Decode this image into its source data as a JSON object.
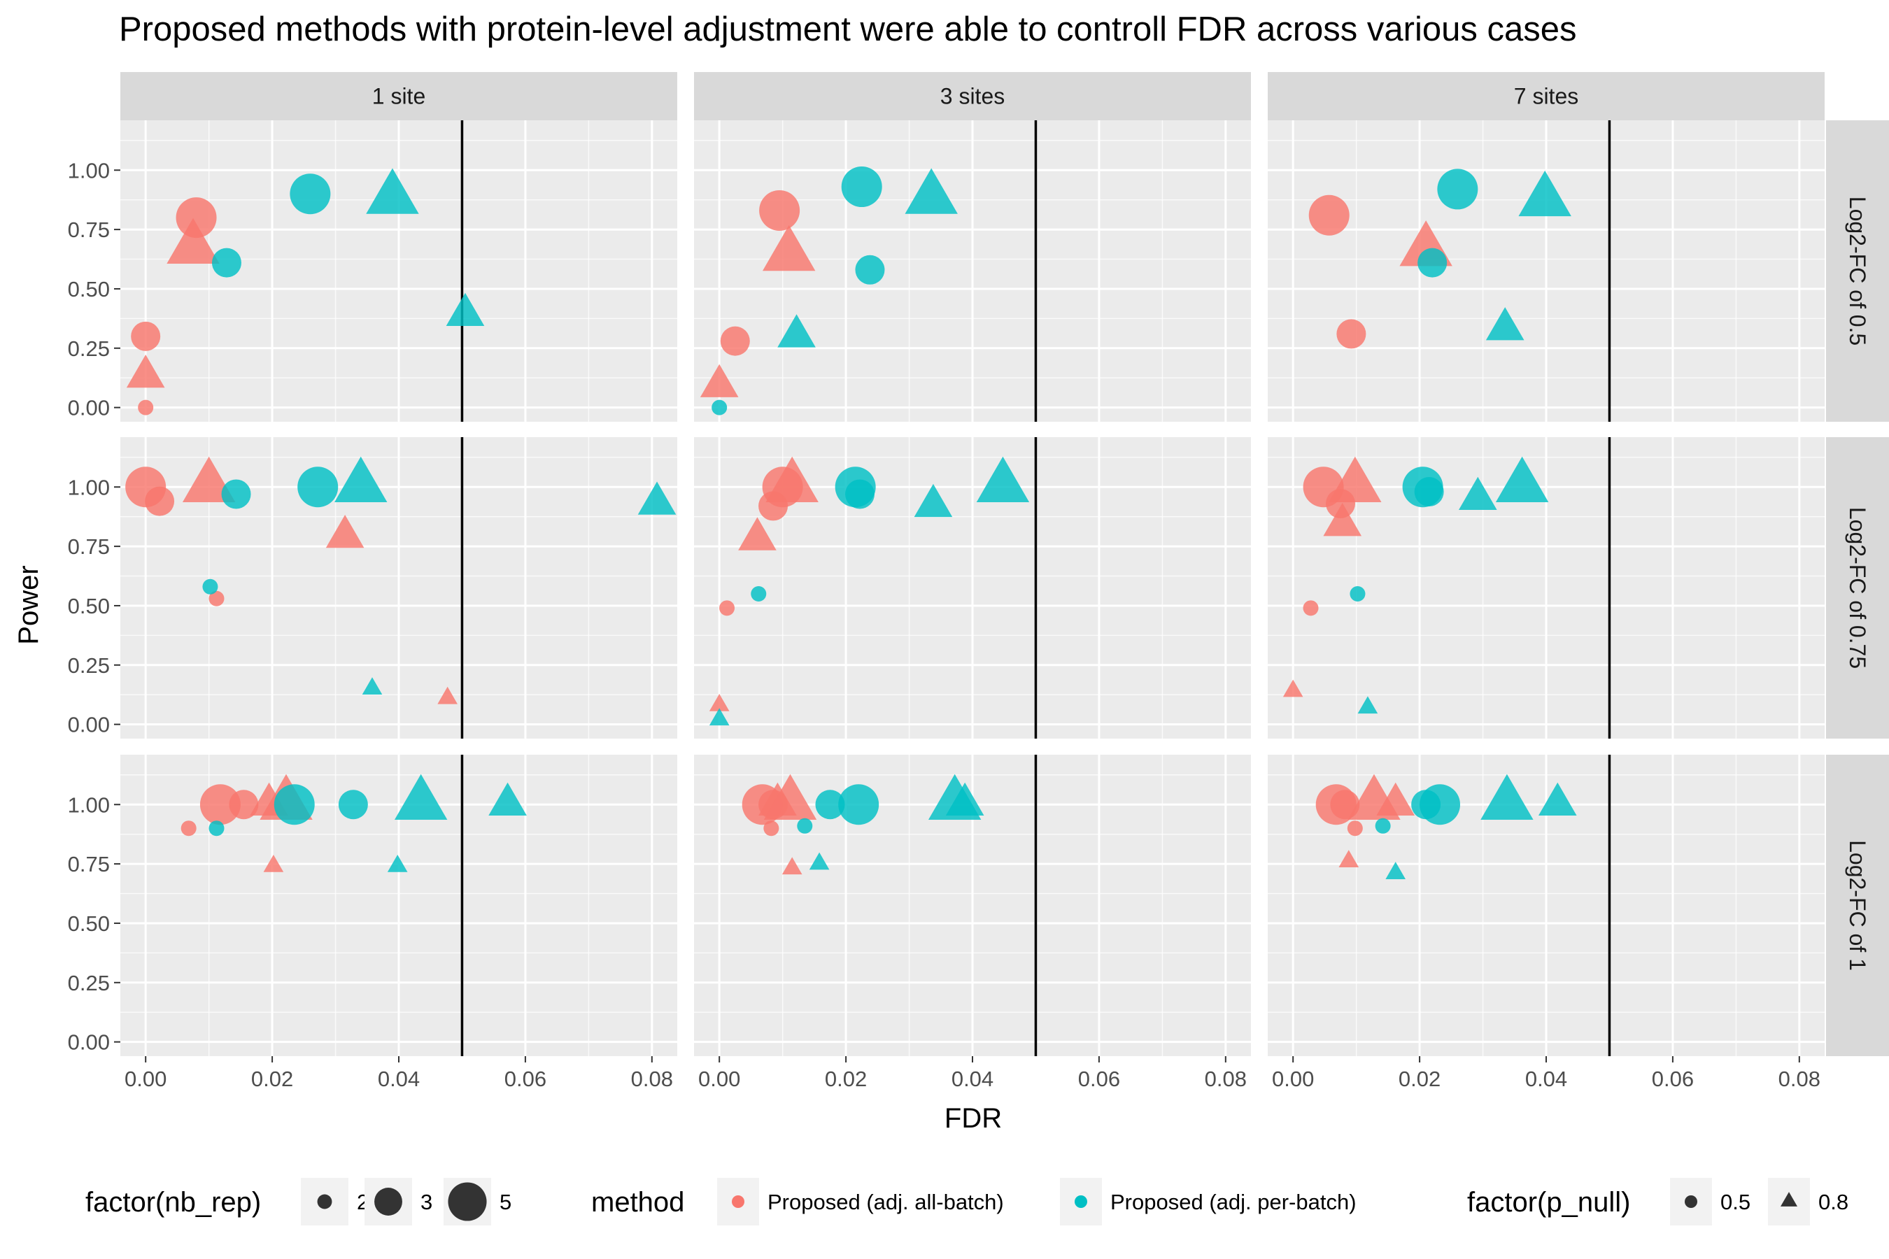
{
  "chart_data": {
    "type": "scatter",
    "title": "Proposed methods with protein-level adjustment were able to controll FDR across various cases",
    "xlabel": "FDR",
    "ylabel": "Power",
    "xlim": [
      -0.004,
      0.084
    ],
    "ylim": [
      -0.06,
      1.21
    ],
    "x_ticks": [
      0.0,
      0.02,
      0.04,
      0.06,
      0.08
    ],
    "x_tick_labels": [
      "0.00",
      "0.02",
      "0.04",
      "0.06",
      "0.08"
    ],
    "y_ticks": [
      0.0,
      0.25,
      0.5,
      0.75,
      1.0
    ],
    "y_tick_labels": [
      "0.00",
      "0.25",
      "0.50",
      "0.75",
      "1.00"
    ],
    "reference_line_x": 0.05,
    "facet_columns": [
      "1 site",
      "3 sites",
      "7 sites"
    ],
    "facet_rows": [
      "Log2-FC of 0.5",
      "Log2-FC of 0.75",
      "Log2-FC of 1"
    ],
    "grid": true,
    "legend_placement": "bottom",
    "colors": {
      "Proposed (adj. all-batch)": "#F8766D",
      "Proposed (adj. per-batch)": "#00BFC4",
      "panel_background": "#EBEBEB",
      "strip_background": "#D9D9D9"
    },
    "point_fields": [
      "x_fdr",
      "y_power",
      "method_index",
      "nb_rep",
      "p_null"
    ],
    "methods": [
      "Proposed (adj. all-batch)",
      "Proposed (adj. per-batch)"
    ],
    "panels": [
      {
        "col": "1 site",
        "row": "Log2-FC of 0.5",
        "points": [
          [
            0.0,
            0.0,
            0,
            2,
            0.5
          ],
          [
            0.0,
            0.3,
            0,
            3,
            0.5
          ],
          [
            0.008,
            0.8,
            0,
            5,
            0.5
          ],
          [
            0.0,
            0.13,
            0,
            3,
            0.8
          ],
          [
            0.0075,
            0.67,
            0,
            5,
            0.8
          ],
          [
            0.0128,
            0.61,
            1,
            3,
            0.5
          ],
          [
            0.026,
            0.9,
            1,
            5,
            0.5
          ],
          [
            0.0505,
            0.39,
            1,
            3,
            0.8
          ],
          [
            0.039,
            0.88,
            1,
            5,
            0.8
          ]
        ]
      },
      {
        "col": "3 sites",
        "row": "Log2-FC of 0.5",
        "points": [
          [
            0.0025,
            0.28,
            0,
            3,
            0.5
          ],
          [
            0.0095,
            0.83,
            0,
            5,
            0.5
          ],
          [
            0.0,
            0.09,
            0,
            3,
            0.8
          ],
          [
            0.011,
            0.64,
            0,
            5,
            0.8
          ],
          [
            0.0,
            0.0,
            1,
            2,
            0.5
          ],
          [
            0.0238,
            0.58,
            1,
            3,
            0.5
          ],
          [
            0.0225,
            0.93,
            1,
            5,
            0.5
          ],
          [
            0.0122,
            0.3,
            1,
            3,
            0.8
          ],
          [
            0.0335,
            0.88,
            1,
            5,
            0.8
          ]
        ]
      },
      {
        "col": "7 sites",
        "row": "Log2-FC of 0.5",
        "points": [
          [
            0.0092,
            0.31,
            0,
            3,
            0.5
          ],
          [
            0.0057,
            0.81,
            0,
            5,
            0.5
          ],
          [
            0.021,
            0.66,
            0,
            5,
            0.8
          ],
          [
            0.022,
            0.61,
            1,
            3,
            0.5
          ],
          [
            0.026,
            0.92,
            1,
            5,
            0.5
          ],
          [
            0.0335,
            0.33,
            1,
            3,
            0.8
          ],
          [
            0.0398,
            0.87,
            1,
            5,
            0.8
          ]
        ]
      },
      {
        "col": "1 site",
        "row": "Log2-FC of 0.75",
        "points": [
          [
            0.0112,
            0.53,
            0,
            2,
            0.5
          ],
          [
            0.0022,
            0.94,
            0,
            3,
            0.5
          ],
          [
            0.0,
            1.0,
            0,
            5,
            0.5
          ],
          [
            0.0477,
            0.11,
            0,
            2,
            0.8
          ],
          [
            0.0315,
            0.79,
            0,
            3,
            0.8
          ],
          [
            0.01,
            1.0,
            0,
            5,
            0.8
          ],
          [
            0.0102,
            0.58,
            1,
            2,
            0.5
          ],
          [
            0.0143,
            0.97,
            1,
            3,
            0.5
          ],
          [
            0.0272,
            1.0,
            1,
            5,
            0.5
          ],
          [
            0.0358,
            0.15,
            1,
            2,
            0.8
          ],
          [
            0.0808,
            0.93,
            1,
            3,
            0.8
          ],
          [
            0.034,
            1.0,
            1,
            5,
            0.8
          ]
        ]
      },
      {
        "col": "3 sites",
        "row": "Log2-FC of 0.75",
        "points": [
          [
            0.0012,
            0.49,
            0,
            2,
            0.5
          ],
          [
            0.0085,
            0.92,
            0,
            3,
            0.5
          ],
          [
            0.01,
            1.0,
            0,
            5,
            0.5
          ],
          [
            0.0,
            0.08,
            0,
            2,
            0.8
          ],
          [
            0.006,
            0.78,
            0,
            3,
            0.8
          ],
          [
            0.0115,
            1.0,
            0,
            5,
            0.8
          ],
          [
            0.0062,
            0.55,
            1,
            2,
            0.5
          ],
          [
            0.0222,
            0.97,
            1,
            3,
            0.5
          ],
          [
            0.0215,
            1.0,
            1,
            5,
            0.5
          ],
          [
            0.0,
            0.02,
            1,
            2,
            0.8
          ],
          [
            0.0338,
            0.92,
            1,
            3,
            0.8
          ],
          [
            0.0448,
            1.0,
            1,
            5,
            0.8
          ]
        ]
      },
      {
        "col": "7 sites",
        "row": "Log2-FC of 0.75",
        "points": [
          [
            0.0028,
            0.49,
            0,
            2,
            0.5
          ],
          [
            0.0075,
            0.93,
            0,
            3,
            0.5
          ],
          [
            0.0048,
            1.0,
            0,
            5,
            0.5
          ],
          [
            0.0,
            0.14,
            0,
            2,
            0.8
          ],
          [
            0.0078,
            0.84,
            0,
            3,
            0.8
          ],
          [
            0.0098,
            1.0,
            0,
            5,
            0.8
          ],
          [
            0.0102,
            0.55,
            1,
            2,
            0.5
          ],
          [
            0.0215,
            0.98,
            1,
            3,
            0.5
          ],
          [
            0.0205,
            1.0,
            1,
            5,
            0.5
          ],
          [
            0.0118,
            0.07,
            1,
            2,
            0.8
          ],
          [
            0.0292,
            0.95,
            1,
            3,
            0.8
          ],
          [
            0.0362,
            1.0,
            1,
            5,
            0.8
          ]
        ]
      },
      {
        "col": "1 site",
        "row": "Log2-FC of 1",
        "points": [
          [
            0.0068,
            0.9,
            0,
            2,
            0.5
          ],
          [
            0.0155,
            1.0,
            0,
            3,
            0.5
          ],
          [
            0.0118,
            1.0,
            0,
            5,
            0.5
          ],
          [
            0.0202,
            0.74,
            0,
            2,
            0.8
          ],
          [
            0.0195,
            1.0,
            0,
            3,
            0.8
          ],
          [
            0.0222,
            1.0,
            0,
            5,
            0.8
          ],
          [
            0.0112,
            0.9,
            1,
            2,
            0.5
          ],
          [
            0.0328,
            1.0,
            1,
            3,
            0.5
          ],
          [
            0.0235,
            1.0,
            1,
            5,
            0.5
          ],
          [
            0.0398,
            0.74,
            1,
            2,
            0.8
          ],
          [
            0.0572,
            1.0,
            1,
            3,
            0.8
          ],
          [
            0.0435,
            1.0,
            1,
            5,
            0.8
          ]
        ]
      },
      {
        "col": "3 sites",
        "row": "Log2-FC of 1",
        "points": [
          [
            0.0082,
            0.9,
            0,
            2,
            0.5
          ],
          [
            0.0085,
            1.0,
            0,
            3,
            0.5
          ],
          [
            0.0068,
            1.0,
            0,
            5,
            0.5
          ],
          [
            0.0115,
            0.73,
            0,
            2,
            0.8
          ],
          [
            0.0092,
            1.0,
            0,
            3,
            0.8
          ],
          [
            0.0112,
            1.0,
            0,
            5,
            0.8
          ],
          [
            0.0135,
            0.91,
            1,
            2,
            0.5
          ],
          [
            0.0175,
            1.0,
            1,
            3,
            0.5
          ],
          [
            0.022,
            1.0,
            1,
            5,
            0.5
          ],
          [
            0.0158,
            0.75,
            1,
            2,
            0.8
          ],
          [
            0.0388,
            1.0,
            1,
            3,
            0.8
          ],
          [
            0.0372,
            1.0,
            1,
            5,
            0.8
          ]
        ]
      },
      {
        "col": "7 sites",
        "row": "Log2-FC of 1",
        "points": [
          [
            0.0098,
            0.9,
            0,
            2,
            0.5
          ],
          [
            0.0082,
            1.0,
            0,
            3,
            0.5
          ],
          [
            0.0068,
            1.0,
            0,
            5,
            0.5
          ],
          [
            0.0088,
            0.76,
            0,
            2,
            0.8
          ],
          [
            0.0162,
            1.0,
            0,
            3,
            0.8
          ],
          [
            0.0128,
            1.0,
            0,
            5,
            0.8
          ],
          [
            0.0142,
            0.91,
            1,
            2,
            0.5
          ],
          [
            0.021,
            1.0,
            1,
            3,
            0.5
          ],
          [
            0.0232,
            1.0,
            1,
            5,
            0.5
          ],
          [
            0.0162,
            0.71,
            1,
            2,
            0.8
          ],
          [
            0.0418,
            1.0,
            1,
            3,
            0.8
          ],
          [
            0.0338,
            1.0,
            1,
            5,
            0.8
          ]
        ]
      }
    ],
    "legends": {
      "nb_rep": {
        "title": "factor(nb_rep)",
        "labels": [
          "2",
          "3",
          "5"
        ]
      },
      "method": {
        "title": "method",
        "labels": [
          "Proposed (adj. all-batch)",
          "Proposed (adj. per-batch)"
        ]
      },
      "p_null": {
        "title": "factor(p_null)",
        "labels": [
          "0.5",
          "0.8"
        ]
      }
    }
  }
}
